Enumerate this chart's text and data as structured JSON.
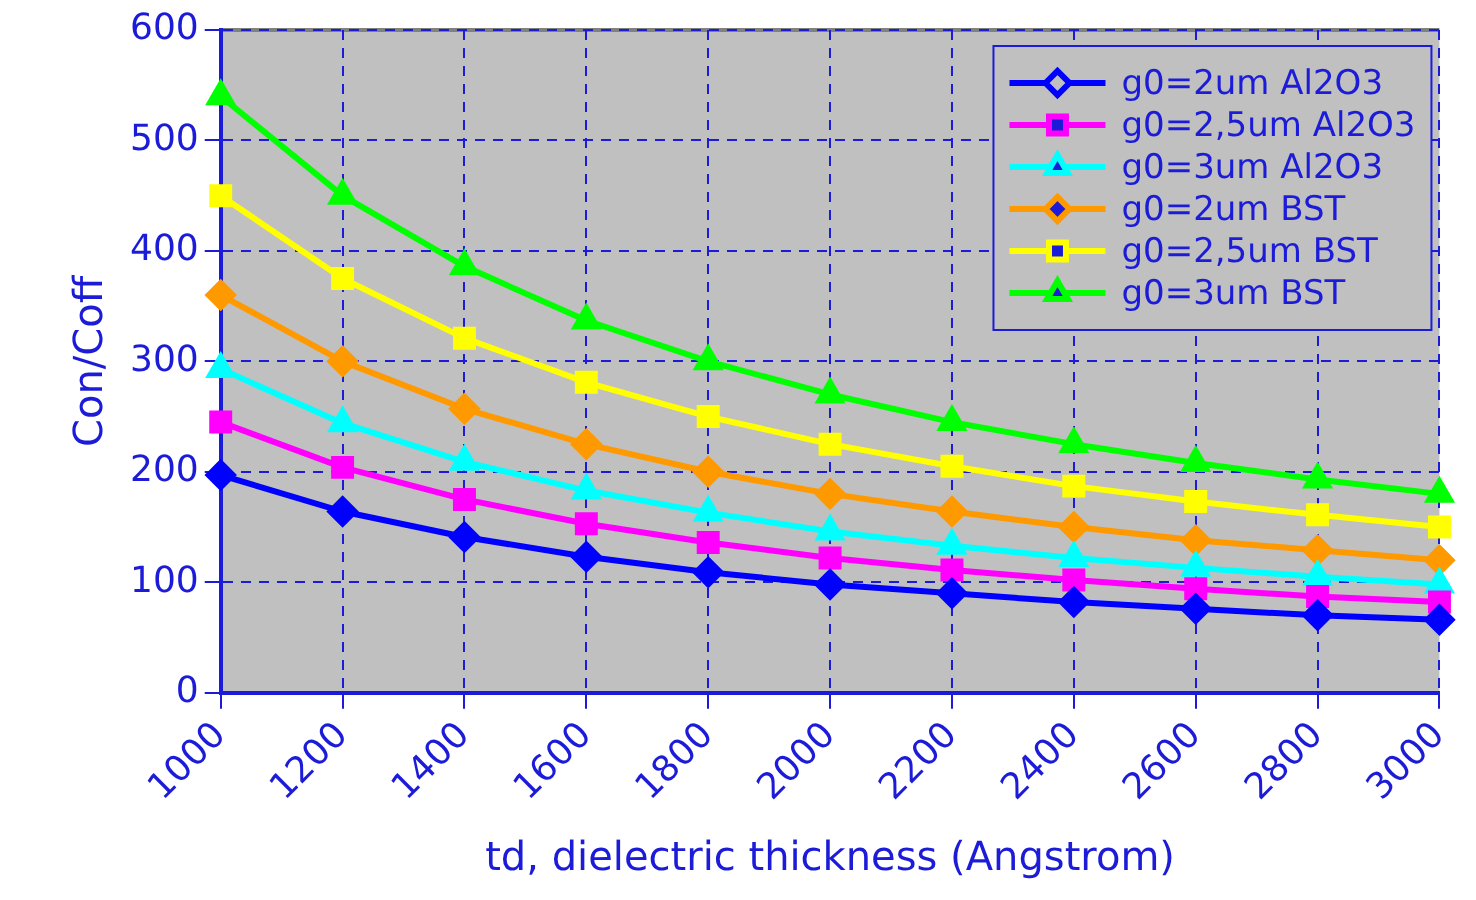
{
  "chart_data": {
    "type": "line",
    "xlabel": "td, dielectric thickness (Angstrom)",
    "ylabel": "Con/Coff",
    "categories": [
      "1000",
      "1200",
      "1400",
      "1600",
      "1800",
      "2000",
      "2200",
      "2400",
      "2600",
      "2800",
      "3000"
    ],
    "ylim": [
      0,
      600
    ],
    "yticks": [
      0,
      100,
      200,
      300,
      400,
      500,
      600
    ],
    "grid": true,
    "legend": "top right",
    "series": [
      {
        "name": "g0=2um Al2O3",
        "color": "#0000ff",
        "marker": "diamond",
        "values": [
          197,
          164,
          141,
          123,
          109,
          98,
          90,
          82,
          76,
          70,
          66
        ]
      },
      {
        "name": "g0=2,5um Al2O3",
        "color": "#ff00ff",
        "marker": "square",
        "values": [
          245,
          204,
          175,
          153,
          136,
          122,
          111,
          102,
          94,
          87,
          82
        ]
      },
      {
        "name": "g0=3um Al2O3",
        "color": "#00ffff",
        "marker": "triangle",
        "values": [
          293,
          244,
          209,
          183,
          163,
          146,
          133,
          122,
          113,
          105,
          98
        ]
      },
      {
        "name": "g0=2um BST",
        "color": "#ff9900",
        "marker": "diamond",
        "values": [
          360,
          300,
          257,
          225,
          200,
          180,
          164,
          150,
          138,
          129,
          120
        ]
      },
      {
        "name": "g0=2,5um BST",
        "color": "#ffff00",
        "marker": "square",
        "values": [
          450,
          375,
          321,
          281,
          250,
          225,
          205,
          187,
          173,
          161,
          150
        ]
      },
      {
        "name": "g0=3um BST",
        "color": "#00ff00",
        "marker": "triangle",
        "values": [
          540,
          450,
          386,
          337,
          300,
          270,
          245,
          225,
          208,
          193,
          180
        ]
      }
    ]
  }
}
